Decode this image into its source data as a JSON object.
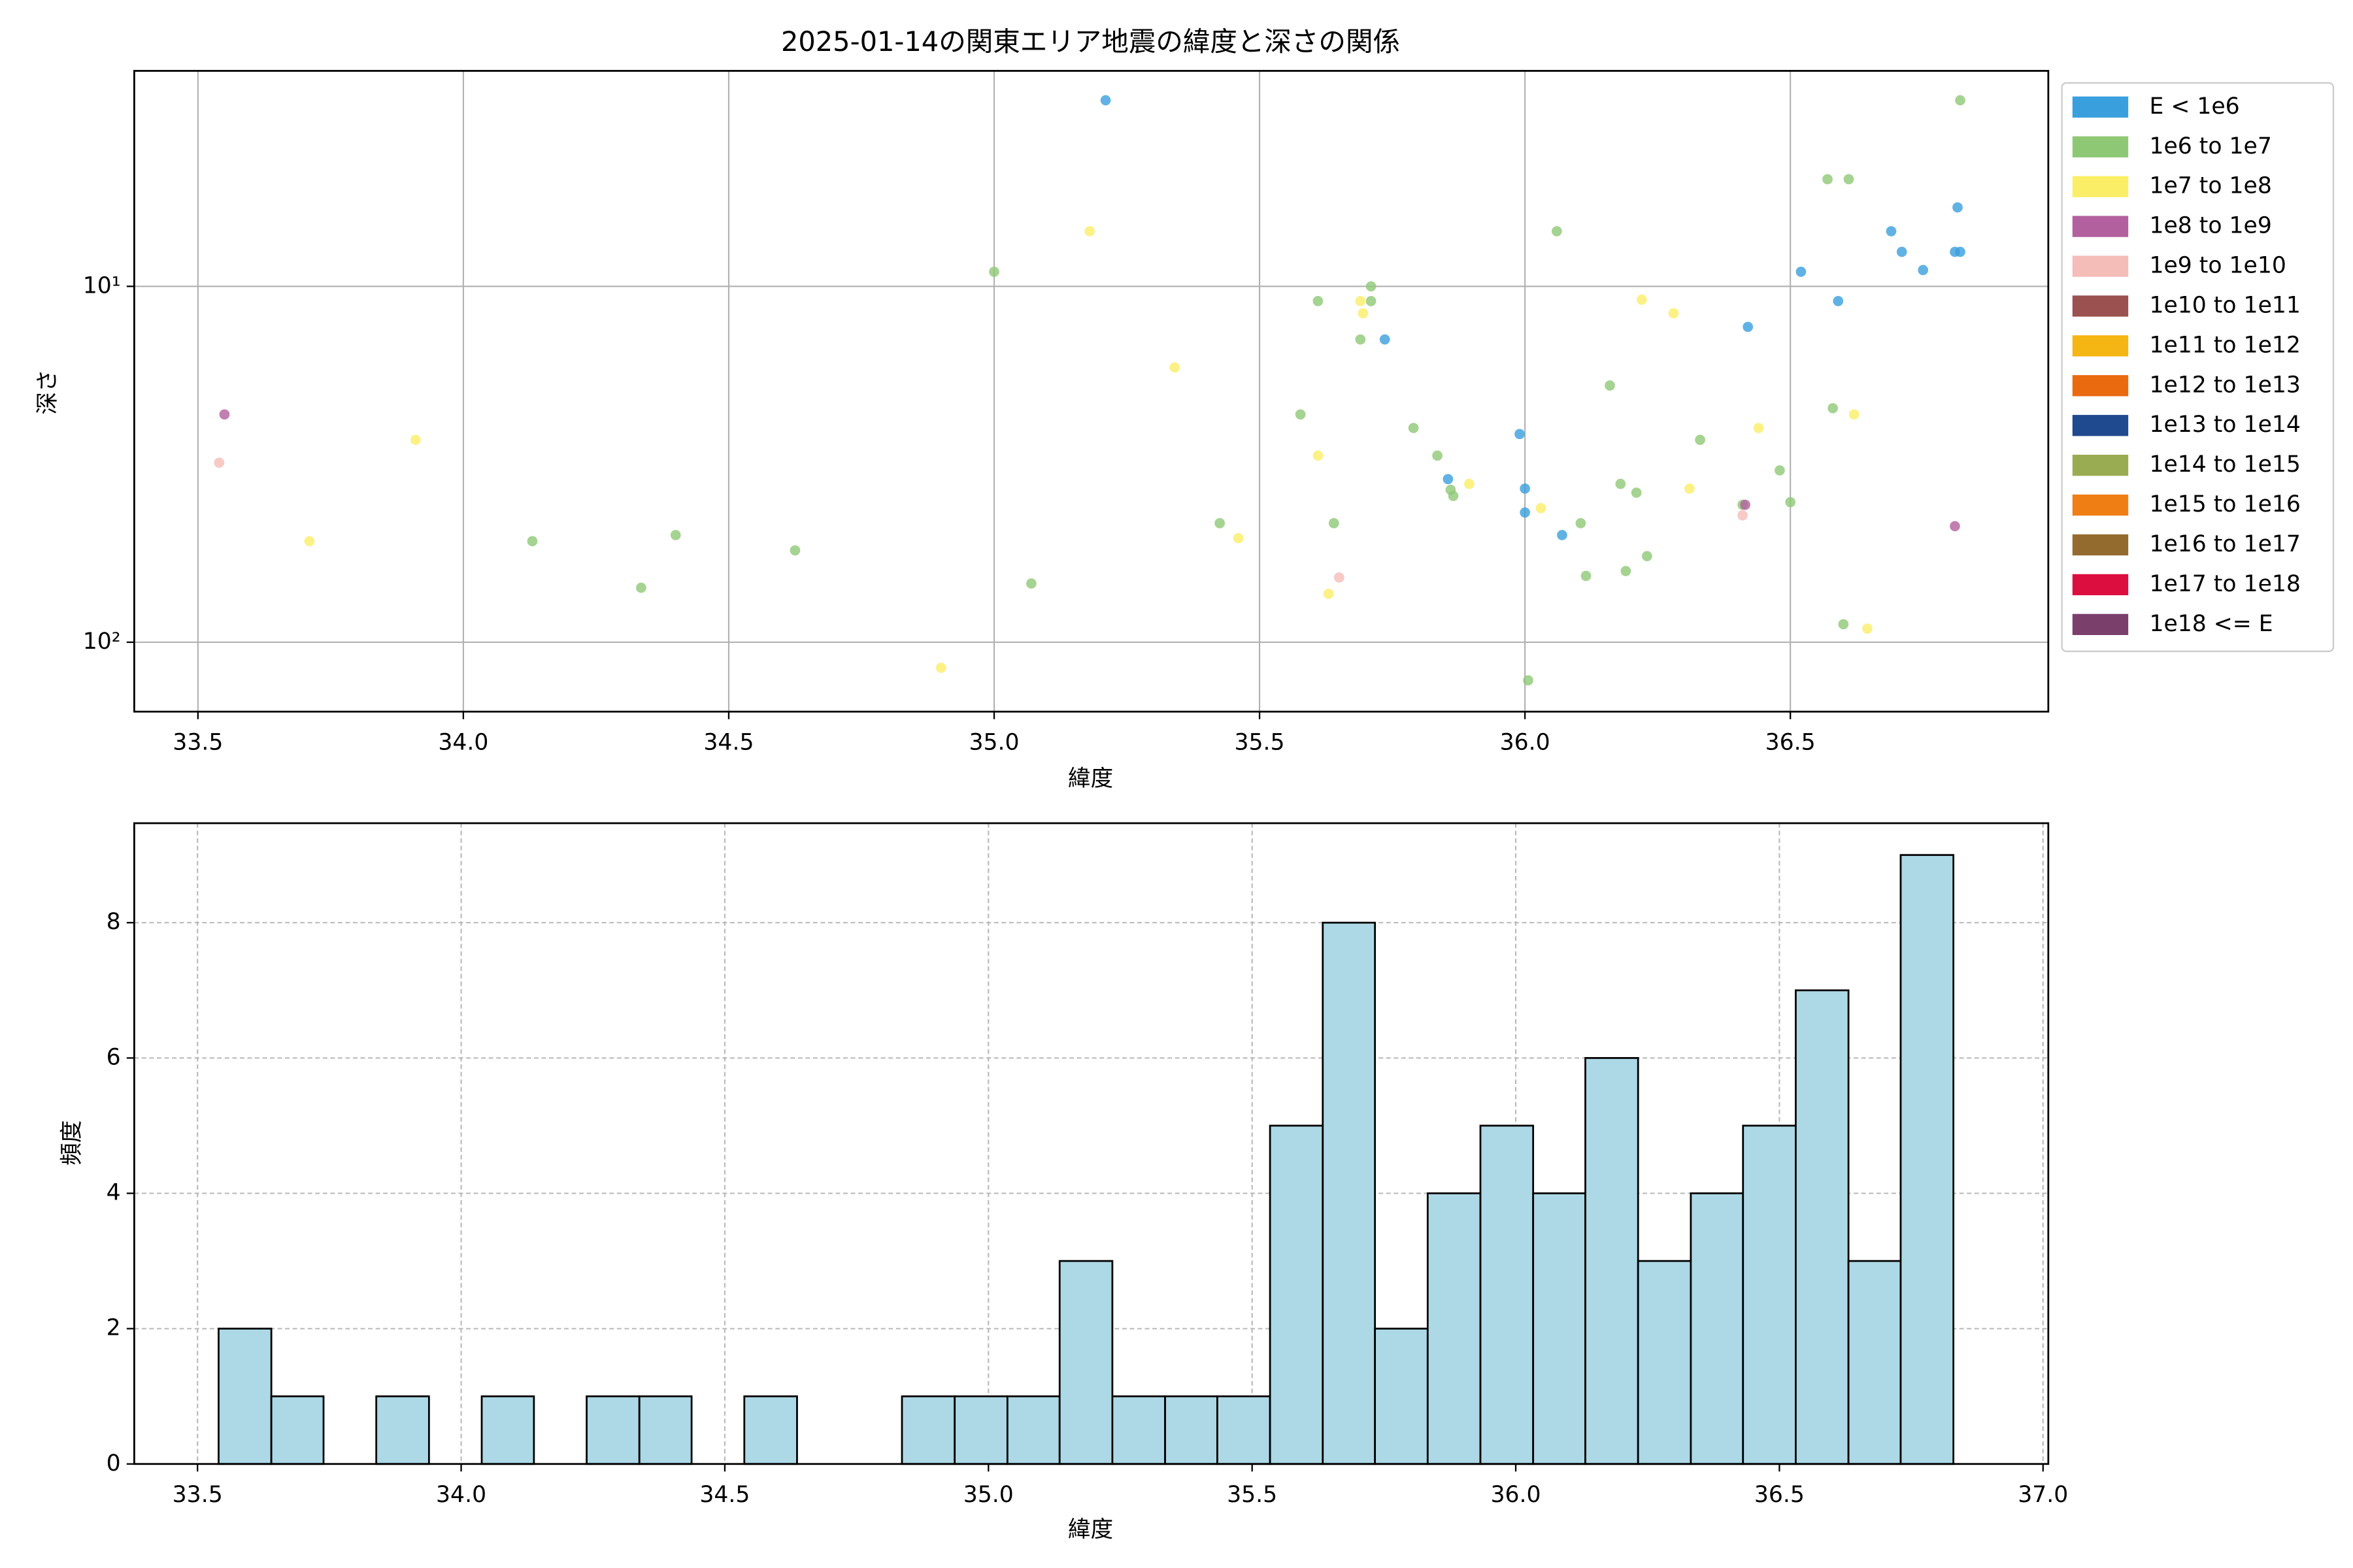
{
  "chart_data": [
    {
      "type": "scatter",
      "title": "2025-01-14の関東エリア地震の緯度と深さの関係",
      "xlabel": "緯度",
      "ylabel": "深さ",
      "yscale": "log",
      "grid": true,
      "xlim": [
        33.38,
        36.986
      ],
      "ylim": [
        156.7,
        2.48
      ],
      "xticks": [
        33.5,
        {
          "value": 34,
          "label": "34.0"
        },
        34.5,
        {
          "value": 35,
          "label": "35.0"
        },
        35.5,
        {
          "value": 36,
          "label": "36.0"
        },
        36.5
      ],
      "yticks": [
        {
          "value": 10,
          "label": "10¹"
        },
        {
          "value": 100,
          "label": "10²"
        }
      ],
      "legend": "outside right",
      "series": [
        {
          "name": "E < 1e6",
          "color": "#3a9fdd",
          "x": [
            35.21,
            35.736,
            35.99,
            36.0,
            36.0,
            35.855,
            36.07,
            36.42,
            36.52,
            36.59,
            36.69,
            36.71,
            36.75,
            36.81,
            36.815,
            36.82
          ],
          "values": [
            3.0,
            14.1,
            26.0,
            37.0,
            43.2,
            34.8,
            50,
            13.0,
            9.1,
            11.0,
            7.0,
            8.0,
            9.0,
            8.0,
            6.0,
            8.0
          ]
        },
        {
          "name": "1e6 to 1e7",
          "color": "#8fc875",
          "x": [
            35.0,
            35.07,
            34.625,
            34.4,
            34.335,
            34.13,
            35.425,
            35.577,
            35.61,
            35.64,
            35.69,
            35.71,
            35.71,
            35.79,
            35.835,
            35.86,
            35.865,
            36.006,
            36.06,
            36.105,
            36.115,
            36.16,
            36.18,
            36.19,
            36.21,
            36.23,
            36.33,
            36.48,
            36.5,
            36.57,
            36.61,
            36.58,
            36.6,
            36.82,
            36.41
          ],
          "values": [
            9.1,
            68.4,
            55.2,
            50,
            70.3,
            52,
            46.3,
            22.9,
            11.0,
            46.3,
            14.1,
            10,
            11,
            25.0,
            29.9,
            37.3,
            38.8,
            128,
            7.0,
            46.3,
            65.1,
            19.0,
            35.9,
            63.1,
            38,
            57.3,
            27.0,
            32.9,
            40.4,
            5.0,
            5.0,
            22.0,
            89,
            3.0,
            41.1
          ]
        },
        {
          "name": "1e7 to 1e8",
          "color": "#fbee67",
          "x": [
            33.71,
            33.91,
            34.9,
            35.18,
            35.34,
            35.46,
            35.61,
            35.63,
            35.69,
            35.695,
            35.895,
            36.03,
            36.22,
            36.28,
            36.31,
            36.44,
            36.62,
            36.645
          ],
          "values": [
            52,
            27.0,
            118,
            7.0,
            16.9,
            51,
            29.9,
            73.1,
            11,
            11.9,
            35.9,
            42,
            10.9,
            11.9,
            37,
            25,
            22.9,
            91.6
          ]
        },
        {
          "name": "1e8 to 1e9",
          "color": "#b3609e",
          "x": [
            33.55,
            36.415,
            36.81
          ],
          "values": [
            22.9,
            41.1,
            47.2
          ]
        },
        {
          "name": "1e9 to 1e10",
          "color": "#f5bdb8",
          "x": [
            33.54,
            35.65,
            36.41
          ],
          "values": [
            31.3,
            65.8,
            44
          ]
        },
        {
          "name": "1e10 to 1e11",
          "color": "#9b514f",
          "x": [],
          "values": []
        },
        {
          "name": "1e11 to 1e12",
          "color": "#f5b512",
          "x": [],
          "values": []
        },
        {
          "name": "1e12 to 1e13",
          "color": "#ea6a10",
          "x": [],
          "values": []
        },
        {
          "name": "1e13 to 1e14",
          "color": "#1f4a8f",
          "x": [],
          "values": []
        },
        {
          "name": "1e14 to 1e15",
          "color": "#9aac52",
          "x": [],
          "values": []
        },
        {
          "name": "1e15 to 1e16",
          "color": "#ef7f14",
          "x": [],
          "values": []
        },
        {
          "name": "1e16 to 1e17",
          "color": "#946b2e",
          "x": [],
          "values": []
        },
        {
          "name": "1e17 to 1e18",
          "color": "#dc0e3f",
          "x": [],
          "values": []
        },
        {
          "name": "1e18 <= E",
          "color": "#7b3f6c",
          "x": [],
          "values": []
        }
      ]
    },
    {
      "type": "histogram",
      "xlabel": "緯度",
      "ylabel": "頻度",
      "grid": true,
      "color": "#add8e6",
      "edgecolor": "#000000",
      "xlim": [
        33.38,
        37.01
      ],
      "ylim": [
        0,
        9.47
      ],
      "xticks": [
        33.5,
        {
          "value": 34,
          "label": "34.0"
        },
        34.5,
        {
          "value": 35,
          "label": "35.0"
        },
        35.5,
        {
          "value": 36,
          "label": "36.0"
        },
        36.5,
        {
          "value": 37,
          "label": "37.0"
        }
      ],
      "yticks": [
        0,
        2,
        4,
        6,
        8
      ],
      "bins": [
        33.54,
        33.64,
        33.739,
        33.839,
        33.939,
        34.039,
        34.138,
        34.238,
        34.338,
        34.437,
        34.537,
        34.637,
        34.736,
        34.836,
        34.936,
        35.036,
        35.135,
        35.235,
        35.335,
        35.434,
        35.534,
        35.634,
        35.733,
        35.833,
        35.933,
        36.033,
        36.132,
        36.232,
        36.332,
        36.431,
        36.531,
        36.631,
        36.73,
        36.83
      ],
      "values": [
        2,
        1,
        0,
        1,
        0,
        1,
        0,
        1,
        1,
        0,
        1,
        0,
        0,
        1,
        1,
        1,
        3,
        1,
        1,
        1,
        5,
        8,
        2,
        4,
        5,
        4,
        6,
        3,
        4,
        5,
        7,
        3,
        9
      ]
    }
  ]
}
